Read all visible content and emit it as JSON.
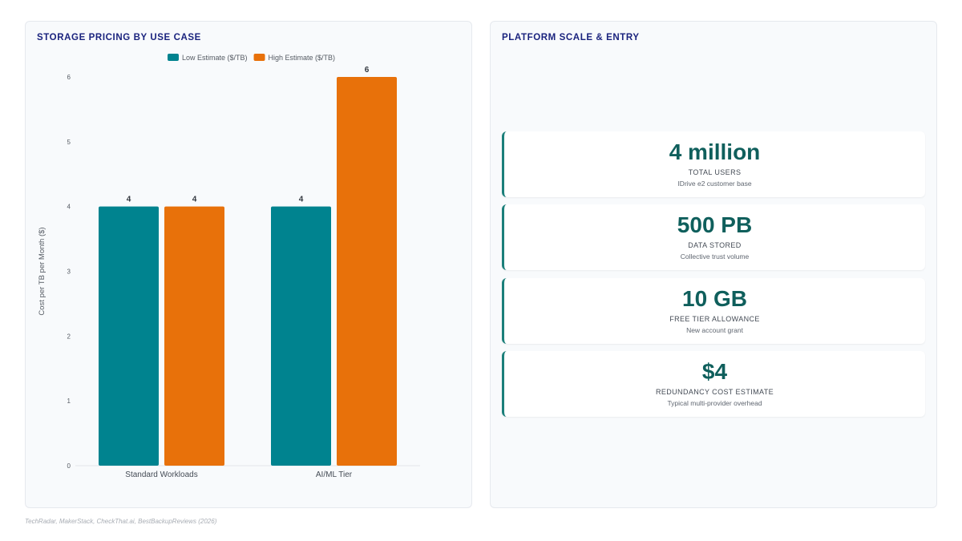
{
  "chart_card": {
    "title": "STORAGE PRICING BY USE CASE"
  },
  "chart_data": {
    "type": "bar",
    "categories": [
      "Standard Workloads",
      "AI/ML Tier"
    ],
    "series": [
      {
        "name": "Low Estimate ($/TB)",
        "values": [
          4,
          4
        ],
        "color": "#00838f"
      },
      {
        "name": "High Estimate ($/TB)",
        "values": [
          4,
          6
        ],
        "color": "#e8710a"
      }
    ],
    "data_labels": [
      [
        "4",
        "4"
      ],
      [
        "4",
        "6"
      ]
    ],
    "ylabel": "Cost per TB per Month ($)",
    "xlabel": "",
    "ylim": [
      0,
      6
    ],
    "yticks": [
      0,
      1,
      2,
      3,
      4,
      5,
      6
    ],
    "legend_position": "top-center",
    "grid": false
  },
  "stats_card": {
    "title": "PLATFORM SCALE & ENTRY",
    "items": [
      {
        "value": "4 million",
        "label": "TOTAL USERS",
        "sub": "IDrive e2 customer base"
      },
      {
        "value": "500 PB",
        "label": "DATA STORED",
        "sub": "Collective trust volume"
      },
      {
        "value": "10 GB",
        "label": "FREE TIER ALLOWANCE",
        "sub": "New account grant"
      },
      {
        "value": "$4",
        "label": "REDUNDANCY COST ESTIMATE",
        "sub": "Typical multi-provider overhead"
      }
    ]
  },
  "source": "TechRadar, MakerStack, CheckThat.ai, BestBackupReviews (2026)"
}
